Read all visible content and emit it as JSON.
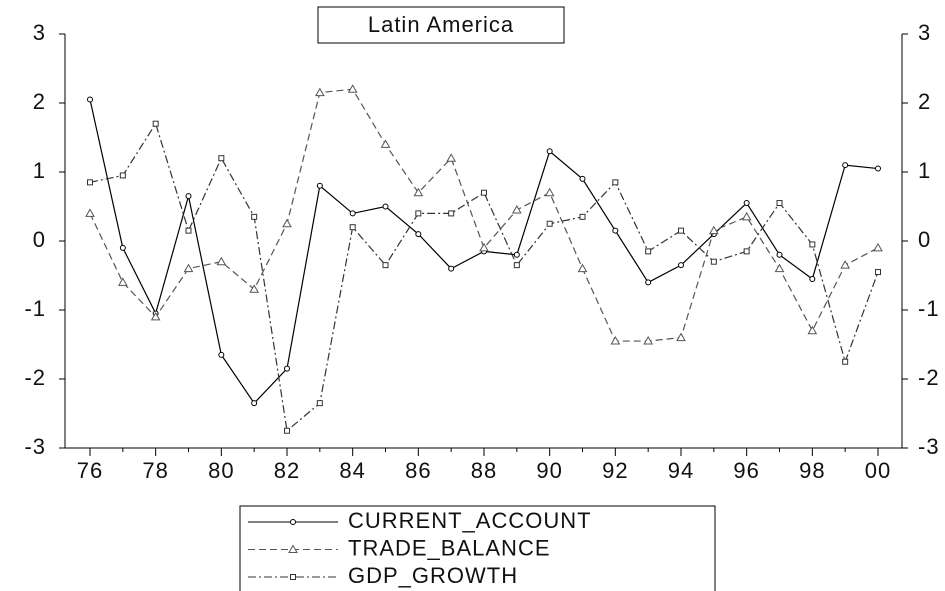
{
  "chart_data": {
    "type": "line",
    "title": "Latin America",
    "categories": [
      "76",
      null,
      "78",
      null,
      "80",
      null,
      "82",
      null,
      "84",
      null,
      "86",
      null,
      "88",
      null,
      "90",
      null,
      "92",
      null,
      "94",
      null,
      "96",
      null,
      "98",
      null,
      "00"
    ],
    "series": [
      {
        "name": "CURRENT_ACCOUNT",
        "color": "#000000",
        "marker": "circle",
        "dash": "solid",
        "values": [
          2.05,
          -0.1,
          -1.05,
          0.65,
          -1.65,
          -2.35,
          -1.85,
          0.8,
          0.4,
          0.5,
          0.1,
          -0.4,
          -0.15,
          -0.2,
          1.3,
          0.9,
          0.15,
          -0.6,
          -0.35,
          0.1,
          0.55,
          -0.2,
          -0.55,
          1.1,
          1.05
        ]
      },
      {
        "name": "TRADE_BALANCE",
        "color": "#555555",
        "marker": "triangle",
        "dash": "dashed",
        "values": [
          0.4,
          -0.6,
          -1.1,
          -0.4,
          -0.3,
          -0.7,
          0.25,
          2.15,
          2.2,
          1.4,
          0.7,
          1.2,
          -0.1,
          0.45,
          0.7,
          -0.4,
          -1.45,
          -1.45,
          -1.4,
          0.15,
          0.35,
          -0.4,
          -1.3,
          -0.35,
          -0.1
        ]
      },
      {
        "name": "GDP_GROWTH",
        "color": "#333333",
        "marker": "square",
        "dash": "dashdot",
        "values": [
          0.85,
          0.95,
          1.7,
          0.15,
          1.2,
          0.35,
          -2.75,
          -2.35,
          0.2,
          -0.35,
          0.4,
          0.4,
          0.7,
          -0.35,
          0.25,
          0.35,
          0.85,
          -0.15,
          0.15,
          -0.3,
          -0.15,
          0.55,
          -0.05,
          -1.75,
          -0.45
        ]
      }
    ],
    "ylim": [
      -3,
      3
    ],
    "yticks": [
      -3,
      -2,
      -1,
      0,
      1,
      2,
      3
    ],
    "grid": false
  }
}
